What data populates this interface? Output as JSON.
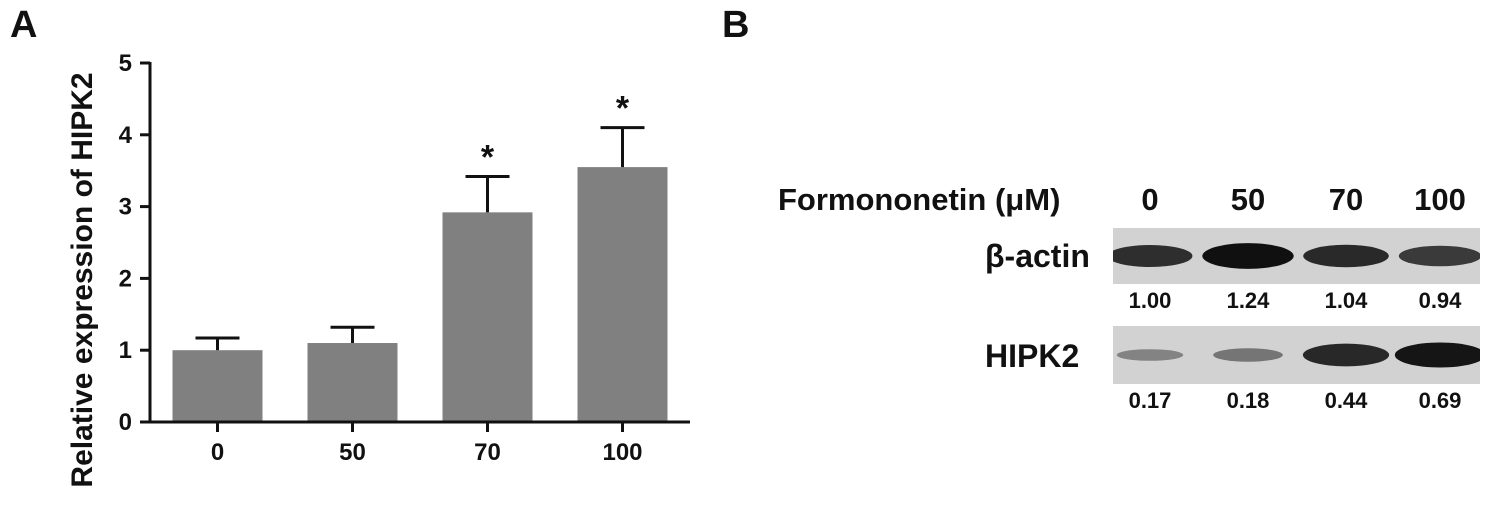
{
  "panels": {
    "a_label": "A",
    "b_label": "B"
  },
  "chart_data": {
    "type": "bar",
    "categories": [
      "0",
      "50",
      "70",
      "100"
    ],
    "values": [
      1.0,
      1.1,
      2.92,
      3.55
    ],
    "errors": [
      0.17,
      0.22,
      0.5,
      0.55
    ],
    "significance": [
      "",
      "",
      "*",
      "*"
    ],
    "title": "",
    "xlabel": "",
    "ylabel": "Relative expression of HIPK2",
    "ylim": [
      0,
      5
    ],
    "yticks": [
      "0",
      "1",
      "2",
      "3",
      "4",
      "5"
    ],
    "bar_color": "#808080",
    "grid": false
  },
  "blot": {
    "treatment_label": "Formononetin (μM)",
    "lanes": [
      "0",
      "50",
      "70",
      "100"
    ],
    "rows": [
      {
        "label": "β-actin",
        "intensities": [
          0.78,
          0.98,
          0.8,
          0.7
        ],
        "quant": [
          "1.00",
          "1.24",
          "1.04",
          "0.94"
        ]
      },
      {
        "label": "HIPK2",
        "intensities": [
          0.2,
          0.3,
          0.82,
          0.95
        ],
        "quant": [
          "0.17",
          "0.18",
          "0.44",
          "0.69"
        ]
      }
    ],
    "background_color": "#d2d2d2",
    "band_color": "#0c0c0c"
  }
}
